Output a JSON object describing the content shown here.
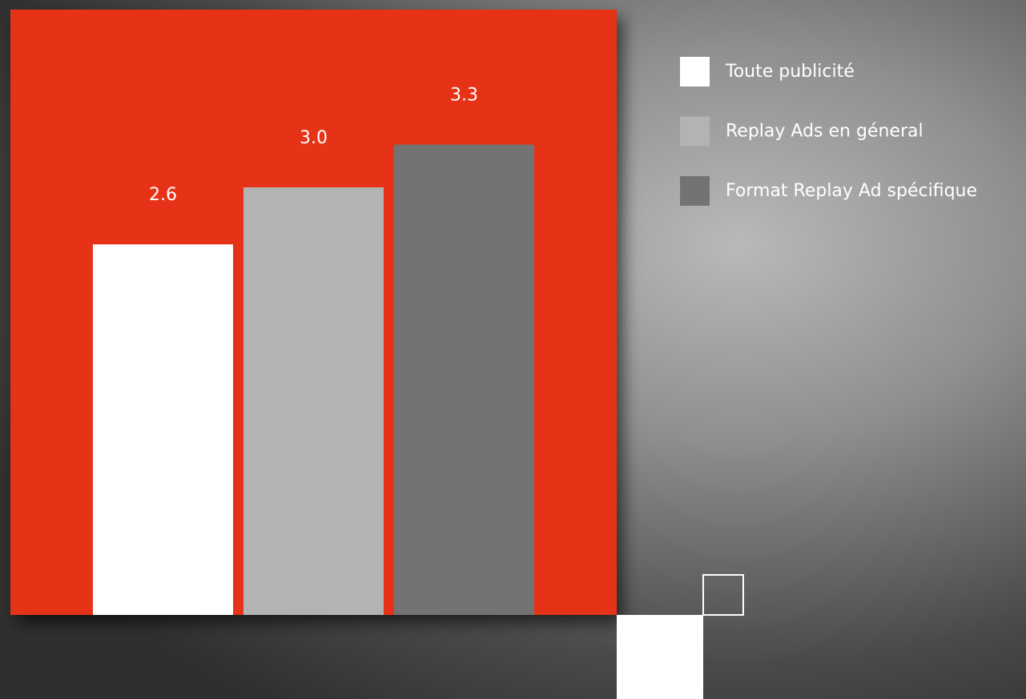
{
  "chart_data": {
    "type": "bar",
    "categories": [
      null
    ],
    "series": [
      {
        "name": "Toute publicité",
        "color": "#ffffff",
        "values": [
          2.6
        ],
        "value_labels": [
          "2.6"
        ]
      },
      {
        "name": "Replay Ads en géneral",
        "color": "#b3b3b3",
        "values": [
          3.0
        ],
        "value_labels": [
          "3.0"
        ]
      },
      {
        "name": "Format Replay Ad spécifique",
        "color": "#737373",
        "values": [
          3.3
        ],
        "value_labels": [
          "3.3"
        ]
      }
    ],
    "legend": "right"
  }
}
